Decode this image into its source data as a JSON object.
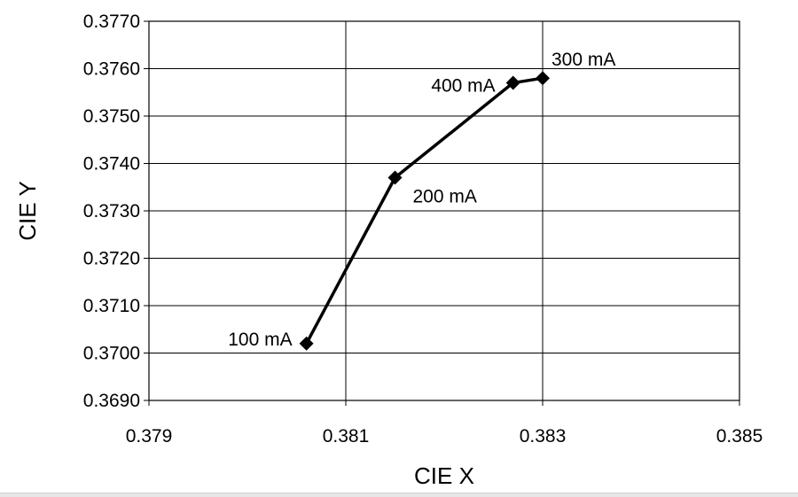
{
  "chart_data": {
    "type": "line",
    "xlabel": "CIE X",
    "ylabel": "CIE Y",
    "xlim": [
      0.379,
      0.385
    ],
    "ylim": [
      0.369,
      0.377
    ],
    "x_ticks": [
      "0.379",
      "0.381",
      "0.383",
      "0.385"
    ],
    "y_ticks": [
      "0.3690",
      "0.3700",
      "0.3710",
      "0.3720",
      "0.3730",
      "0.3740",
      "0.3750",
      "0.3760",
      "0.3770"
    ],
    "grid": true,
    "series": [
      {
        "x": [
          0.3806,
          0.3815,
          0.3827,
          0.383
        ],
        "y": [
          0.3702,
          0.3737,
          0.3757,
          0.3758
        ],
        "labels": [
          "100 mA",
          "200 mA",
          "400 mA",
          "300 mA"
        ]
      }
    ]
  }
}
